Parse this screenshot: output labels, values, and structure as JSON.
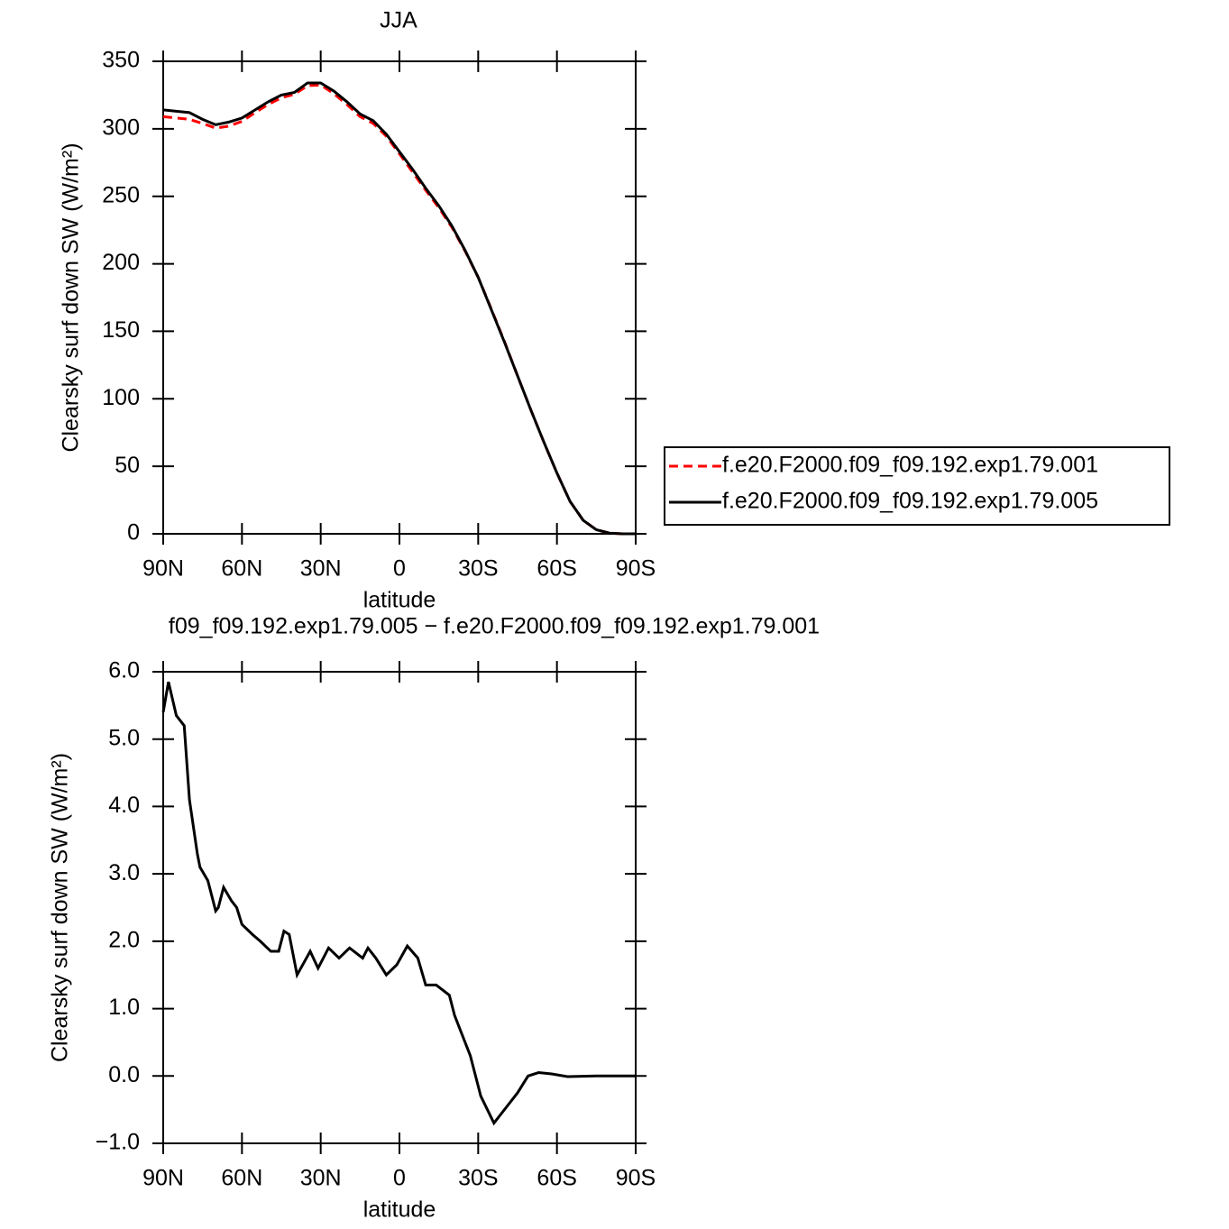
{
  "chart_data": [
    {
      "type": "line",
      "title": "JJA",
      "xlabel": "latitude",
      "ylabel": "Clearsky surf down SW (W/m²)",
      "x": [
        90,
        85,
        80,
        75,
        70,
        65,
        60,
        55,
        50,
        45,
        40,
        35,
        30,
        25,
        20,
        15,
        10,
        5,
        0,
        -5,
        -10,
        -15,
        -20,
        -25,
        -30,
        -35,
        -40,
        -45,
        -50,
        -55,
        -60,
        -65,
        -70,
        -75,
        -80,
        -85,
        -90
      ],
      "series": [
        {
          "name": "f.e20.F2000.f09_f09.192.exp1.79.001",
          "color": "#ff0000",
          "line_style": "dashed",
          "values": [
            309,
            308,
            307,
            304,
            300.5,
            302,
            305.5,
            312,
            318,
            323,
            325.5,
            332,
            332.5,
            326,
            318,
            309,
            304,
            294.5,
            281.5,
            268,
            254.5,
            241.5,
            227,
            209.5,
            190,
            166.5,
            142.5,
            117,
            92,
            68,
            45,
            24,
            10,
            3,
            0.5,
            0,
            0
          ]
        },
        {
          "name": "f.e20.F2000.f09_f09.192.exp1.79.005",
          "color": "#000000",
          "line_style": "solid",
          "values": [
            314,
            313,
            312,
            307,
            303,
            305,
            308,
            314,
            320,
            325,
            327,
            334,
            334,
            328,
            320,
            311,
            306,
            296,
            283,
            270,
            256,
            243,
            228,
            210,
            190,
            166,
            142,
            117,
            92,
            68,
            45,
            24,
            10,
            3,
            0.5,
            0,
            0
          ]
        }
      ],
      "xlim": [
        90,
        -90
      ],
      "xticks": [
        {
          "value": 90,
          "label": "90N"
        },
        {
          "value": 60,
          "label": "60N"
        },
        {
          "value": 30,
          "label": "30N"
        },
        0,
        {
          "value": -30,
          "label": "30S"
        },
        {
          "value": -60,
          "label": "60S"
        },
        {
          "value": -90,
          "label": "90S"
        }
      ],
      "ylim": [
        0,
        350
      ],
      "yticks": [
        0,
        50,
        100,
        150,
        200,
        250,
        300,
        350
      ],
      "legend": "right"
    },
    {
      "type": "line",
      "title": "f09_f09.192.exp1.79.005 − f.e20.F2000.f09_f09.192.exp1.79.001",
      "xlabel": "latitude",
      "ylabel": "Clearsky surf down SW (W/m²)",
      "x": [
        90,
        88,
        85,
        82,
        80,
        77,
        76,
        73,
        70,
        69,
        67,
        64,
        62,
        60,
        56,
        53,
        49,
        46,
        44,
        42,
        39,
        34,
        31,
        27,
        23,
        19,
        14,
        12,
        9,
        5,
        1,
        -3,
        -7,
        -10,
        -14,
        -19,
        -21,
        -27,
        -31,
        -36,
        -40,
        -45,
        -49,
        -53,
        -58,
        -64,
        -75,
        -90
      ],
      "series": [
        {
          "name": null,
          "color": "#000000",
          "line_style": "solid",
          "values": [
            5.4,
            5.85,
            5.35,
            5.2,
            4.1,
            3.3,
            3.1,
            2.9,
            2.45,
            2.5,
            2.8,
            2.6,
            2.5,
            2.25,
            2.1,
            2.0,
            1.85,
            1.85,
            2.15,
            2.1,
            1.5,
            1.85,
            1.6,
            1.9,
            1.75,
            1.9,
            1.75,
            1.9,
            1.75,
            1.5,
            1.65,
            1.93,
            1.75,
            1.35,
            1.35,
            1.2,
            0.9,
            0.3,
            -0.3,
            -0.7,
            -0.5,
            -0.25,
            0.0,
            0.05,
            0.03,
            -0.01,
            0,
            0
          ]
        }
      ],
      "xlim": [
        90,
        -90
      ],
      "xticks": [
        {
          "value": 90,
          "label": "90N"
        },
        {
          "value": 60,
          "label": "60N"
        },
        {
          "value": 30,
          "label": "30N"
        },
        0,
        {
          "value": -30,
          "label": "30S"
        },
        {
          "value": -60,
          "label": "60S"
        },
        {
          "value": -90,
          "label": "90S"
        }
      ],
      "ylim": [
        -1,
        6
      ],
      "yticks": [
        {
          "value": -1,
          "label": "−1.0"
        },
        {
          "value": 0,
          "label": "0.0"
        },
        {
          "value": 1,
          "label": "1.0"
        },
        {
          "value": 2,
          "label": "2.0"
        },
        {
          "value": 3,
          "label": "3.0"
        },
        {
          "value": 4,
          "label": "4.0"
        },
        {
          "value": 5,
          "label": "5.0"
        },
        {
          "value": 6,
          "label": "6.0"
        }
      ]
    }
  ]
}
